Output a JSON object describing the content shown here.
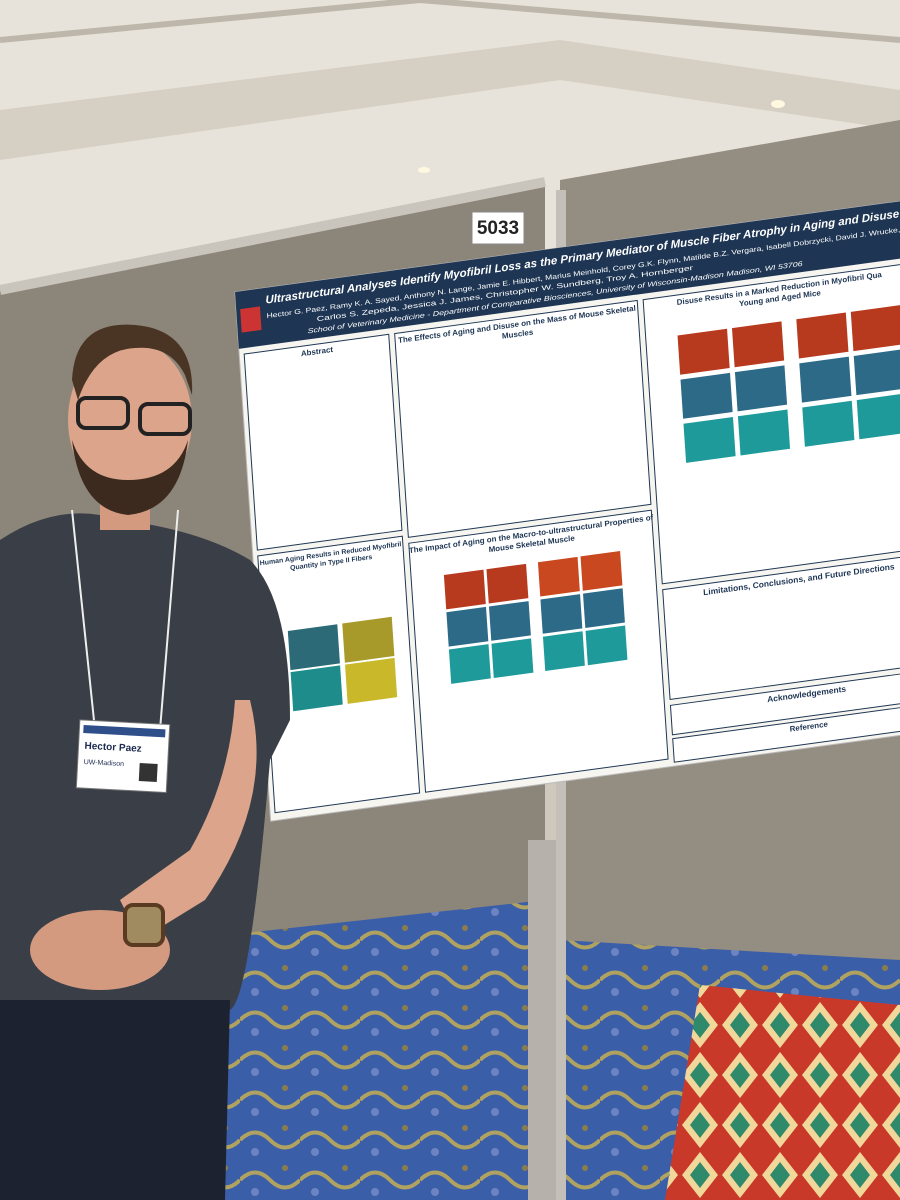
{
  "board_number": "5033",
  "poster": {
    "title": "Ultrastructural Analyses Identify Myofibril Loss as the Primary Mediator of Muscle Fiber Atrophy in Aging and Disuse",
    "authors": [
      "Hector G. Paez, Ramy K. A. Sayed, Anthony N. Lange, Jamie E. Hibbert, Marius Meinhold, Corey G.K. Flynn, Matilde B.Z. Vergara, Isabell Dobrzycki, David J. Wrucke,",
      "Carlos S. Zepeda, Jessica J. James, Christopher W. Sundberg, Troy A. Hornberger"
    ],
    "affiliation": "School of Veterinary Medicine - Department of Comparative Biosciences, University of Wisconsin-Madison Madison, WI 53706",
    "sections": {
      "abstract": "Abstract",
      "human_aging": [
        "Human Aging Results in Reduced Myofibril",
        "Quantity in Type II Fibers"
      ],
      "effects": [
        "The Effects of Aging and Disuse on the Mass of Mouse Skeletal",
        "Muscles"
      ],
      "impact": [
        "The Impact of Aging on the Macro-to-ultrastructural Properties of",
        "Mouse Skeletal Muscle"
      ],
      "disuse": [
        "Disuse Results in a Marked Reduction in Myofibril Qua",
        "Young and Aged Mice"
      ],
      "limitations": "Limitations, Conclusions, and Future Directions",
      "acknowledgements": "Acknowledgements",
      "reference": "Reference"
    }
  },
  "badge": {
    "name": "Hector Paez",
    "affiliation": "UW-Madison"
  }
}
